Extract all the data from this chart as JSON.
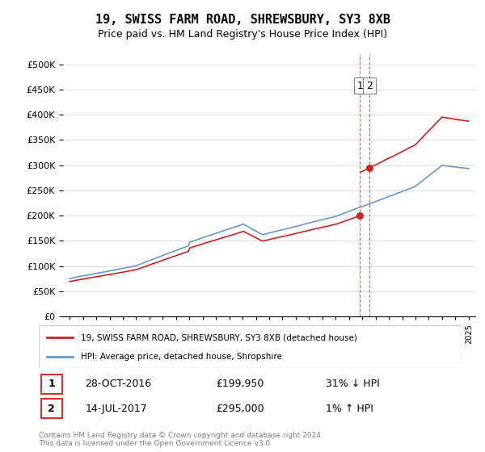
{
  "title": "19, SWISS FARM ROAD, SHREWSBURY, SY3 8XB",
  "subtitle": "Price paid vs. HM Land Registry's House Price Index (HPI)",
  "hpi_color": "#6699CC",
  "price_color": "#CC2222",
  "annotation_color": "#CC2222",
  "dashed_line_color": "#CC2222",
  "legend_label_price": "19, SWISS FARM ROAD, SHREWSBURY, SY3 8XB (detached house)",
  "legend_label_hpi": "HPI: Average price, detached house, Shropshire",
  "transaction1_date": "28-OCT-2016",
  "transaction1_price": 199950,
  "transaction1_hpi": "31% ↓ HPI",
  "transaction2_date": "14-JUL-2017",
  "transaction2_price": 295000,
  "transaction2_hpi": "1% ↑ HPI",
  "transaction1_x": 2016.83,
  "transaction2_x": 2017.54,
  "ylim_max": 520000,
  "ylim_min": 0,
  "xlim_min": 1994.5,
  "xlim_max": 2025.5,
  "footer": "Contains HM Land Registry data © Crown copyright and database right 2024.\nThis data is licensed under the Open Government Licence v3.0.",
  "background_color": "#ffffff",
  "grid_color": "#e0e0e0"
}
